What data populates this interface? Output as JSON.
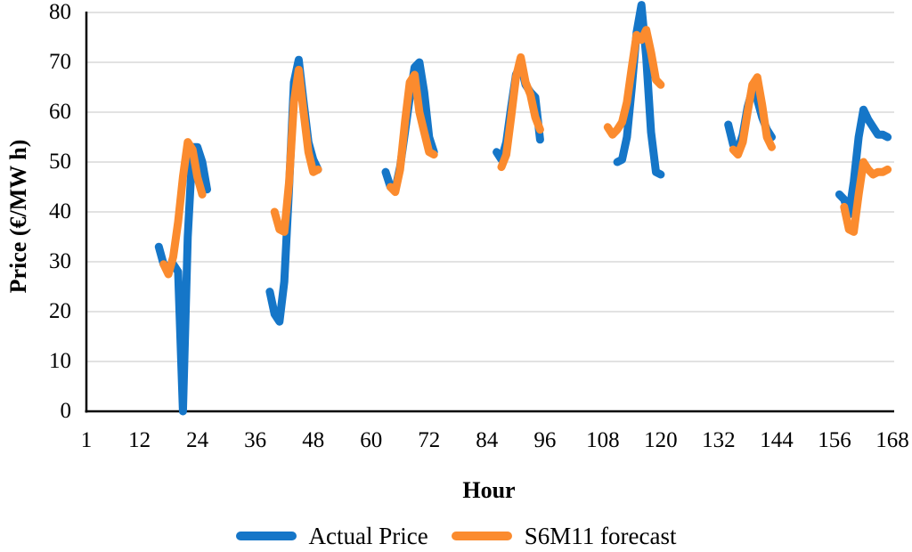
{
  "chart_data": {
    "type": "line",
    "title": "",
    "xlabel": "Hour",
    "ylabel": "Price (€/MW h)",
    "xlim": [
      1,
      168
    ],
    "ylim": [
      0,
      80
    ],
    "x_ticks": [
      1,
      12,
      24,
      36,
      48,
      60,
      72,
      84,
      96,
      108,
      120,
      132,
      144,
      156,
      168
    ],
    "y_ticks": [
      0,
      10,
      20,
      30,
      40,
      50,
      60,
      70,
      80
    ],
    "grid": "horizontal",
    "legend_position": "bottom",
    "axis_color": "#000000",
    "gridline_color": "#d9d9d9",
    "background_color": "#ffffff",
    "line_width": 9,
    "series": [
      {
        "name": "Actual Price",
        "color": "#1576c8",
        "segments": [
          [
            [
              16,
              33
            ],
            [
              17,
              29.5
            ],
            [
              18,
              29
            ],
            [
              19,
              29.5
            ],
            [
              20,
              28
            ],
            [
              21,
              0
            ],
            [
              22,
              35
            ],
            [
              23,
              53
            ],
            [
              24,
              53
            ],
            [
              25,
              50
            ],
            [
              26,
              44.5
            ]
          ],
          [
            [
              39,
              24
            ],
            [
              40,
              19.5
            ],
            [
              41,
              18
            ],
            [
              42,
              26
            ],
            [
              43,
              45
            ],
            [
              44,
              66
            ],
            [
              45,
              70.5
            ],
            [
              46,
              62
            ],
            [
              47,
              54
            ],
            [
              48,
              50.5
            ],
            [
              49,
              48.5
            ]
          ],
          [
            [
              63,
              48
            ],
            [
              64,
              45
            ],
            [
              65,
              44.5
            ],
            [
              66,
              49
            ],
            [
              67,
              56
            ],
            [
              68,
              63
            ],
            [
              69,
              69
            ],
            [
              70,
              70
            ],
            [
              71,
              64
            ],
            [
              72,
              55
            ],
            [
              73,
              52
            ]
          ],
          [
            [
              86,
              52
            ],
            [
              87,
              50.5
            ],
            [
              88,
              54
            ],
            [
              89,
              61
            ],
            [
              90,
              67.5
            ],
            [
              91,
              69.5
            ],
            [
              92,
              65.5
            ],
            [
              93,
              64
            ],
            [
              94,
              63
            ],
            [
              95,
              54.5
            ]
          ],
          [
            [
              111,
              50
            ],
            [
              112,
              50.5
            ],
            [
              113,
              55
            ],
            [
              114,
              65
            ],
            [
              115,
              76
            ],
            [
              116,
              81.5
            ],
            [
              117,
              71
            ],
            [
              118,
              56
            ],
            [
              119,
              48
            ],
            [
              120,
              47.5
            ]
          ],
          [
            [
              134,
              57.5
            ],
            [
              135,
              53.5
            ],
            [
              136,
              52.5
            ],
            [
              137,
              55.5
            ],
            [
              138,
              61
            ],
            [
              139,
              64.5
            ],
            [
              140,
              62.5
            ],
            [
              141,
              59
            ],
            [
              142,
              56.5
            ],
            [
              143,
              55
            ]
          ],
          [
            [
              157,
              43.5
            ],
            [
              158,
              42.5
            ],
            [
              159,
              39.5
            ],
            [
              160,
              46
            ],
            [
              161,
              55
            ],
            [
              162,
              60.5
            ],
            [
              163,
              58.5
            ],
            [
              164,
              57
            ],
            [
              165,
              55.5
            ],
            [
              166,
              55.5
            ],
            [
              167,
              55
            ]
          ]
        ]
      },
      {
        "name": "S6M11 forecast",
        "color": "#fb8b2e",
        "segments": [
          [
            [
              17,
              29.5
            ],
            [
              18,
              27.5
            ],
            [
              19,
              31
            ],
            [
              20,
              38
            ],
            [
              21,
              47
            ],
            [
              22,
              54
            ],
            [
              23,
              52.5
            ],
            [
              24,
              47
            ],
            [
              25,
              43.5
            ]
          ],
          [
            [
              40,
              40
            ],
            [
              41,
              36.5
            ],
            [
              42,
              36
            ],
            [
              43,
              46
            ],
            [
              44,
              62
            ],
            [
              45,
              68.5
            ],
            [
              46,
              60
            ],
            [
              47,
              52
            ],
            [
              48,
              48
            ],
            [
              49,
              48.5
            ]
          ],
          [
            [
              64,
              45
            ],
            [
              65,
              44
            ],
            [
              66,
              48.5
            ],
            [
              67,
              58
            ],
            [
              68,
              66
            ],
            [
              69,
              67.5
            ],
            [
              70,
              60
            ],
            [
              71,
              56
            ],
            [
              72,
              52
            ],
            [
              73,
              51.5
            ]
          ],
          [
            [
              87,
              49
            ],
            [
              88,
              51.5
            ],
            [
              89,
              59
            ],
            [
              90,
              67
            ],
            [
              91,
              71
            ],
            [
              92,
              66
            ],
            [
              93,
              63.5
            ],
            [
              94,
              59
            ],
            [
              95,
              56.5
            ]
          ],
          [
            [
              109,
              57
            ],
            [
              110,
              55.5
            ],
            [
              111,
              56.5
            ],
            [
              112,
              58
            ],
            [
              113,
              62
            ],
            [
              114,
              69
            ],
            [
              115,
              75.5
            ],
            [
              116,
              74.5
            ],
            [
              117,
              76.5
            ],
            [
              118,
              72
            ],
            [
              119,
              66.5
            ],
            [
              120,
              65.5
            ]
          ],
          [
            [
              135,
              52.5
            ],
            [
              136,
              51.5
            ],
            [
              137,
              54
            ],
            [
              138,
              60
            ],
            [
              139,
              65.5
            ],
            [
              140,
              67
            ],
            [
              141,
              61.5
            ],
            [
              142,
              55
            ],
            [
              143,
              53
            ]
          ],
          [
            [
              158,
              41
            ],
            [
              159,
              36.5
            ],
            [
              160,
              36
            ],
            [
              161,
              43.5
            ],
            [
              162,
              50
            ],
            [
              163,
              48.5
            ],
            [
              164,
              47.5
            ],
            [
              165,
              48
            ],
            [
              166,
              48
            ],
            [
              167,
              48.5
            ]
          ]
        ]
      }
    ]
  }
}
